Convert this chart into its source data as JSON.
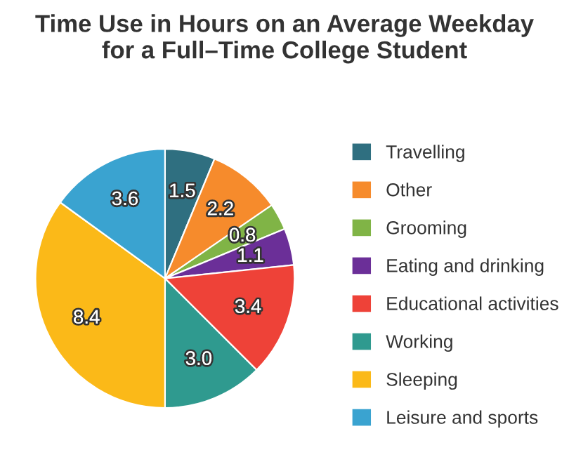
{
  "chart_data": {
    "type": "pie",
    "title": "Time Use in Hours on an Average Weekday\nfor a Full–Time College Student",
    "categories": [
      "Travelling",
      "Other",
      "Grooming",
      "Eating and drinking",
      "Educational activities",
      "Working",
      "Sleeping",
      "Leisure and sports"
    ],
    "values": [
      1.5,
      2.2,
      0.8,
      1.1,
      3.4,
      3.0,
      8.4,
      3.6
    ],
    "colors": [
      "#2f6f80",
      "#f68b2c",
      "#80b446",
      "#6b2f98",
      "#ee4238",
      "#2f9a8f",
      "#fbb918",
      "#3aa3d0"
    ],
    "value_labels": [
      "1.5",
      "2.2",
      "0.8",
      "1.1",
      "3.4",
      "3.0",
      "8.4",
      "3.6"
    ],
    "legend": "right"
  }
}
